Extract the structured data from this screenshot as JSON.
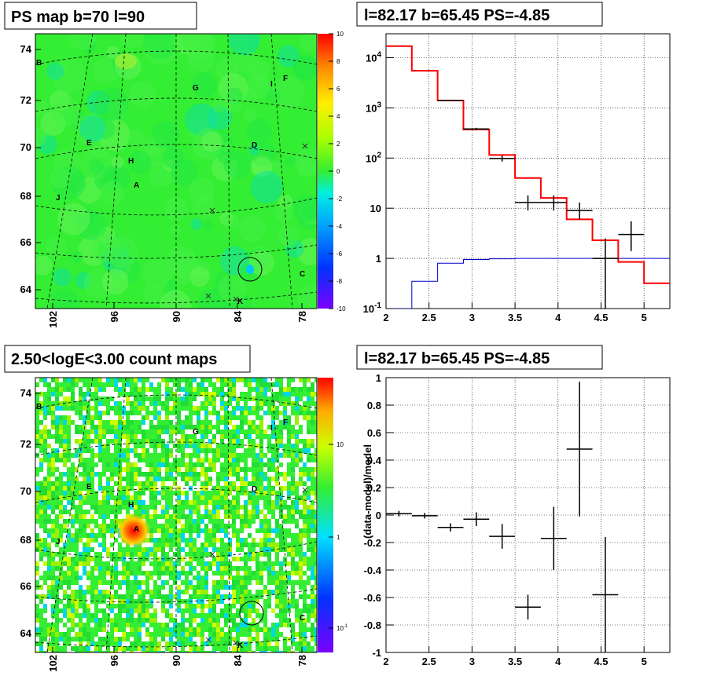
{
  "panels": {
    "ps_map": {
      "title": "PS map b=70 l=90"
    },
    "spectrum": {
      "title": "l=82.17 b=65.45 PS=-4.85"
    },
    "count_map": {
      "title": "2.50<logE<3.00 count maps"
    },
    "residual": {
      "title": "l=82.17 b=65.45 PS=-4.85",
      "ylabel": "(data-model)/model"
    }
  },
  "colors": {
    "model_red": "#ff0000",
    "background_blue": "#0000cc",
    "data_black": "#000000",
    "map_green": "#33ee33"
  },
  "chart_data": [
    {
      "type": "heatmap",
      "name": "ps_map",
      "title": "PS map b=70 l=90",
      "x_ticks": [
        "102",
        "96",
        "90",
        "84",
        "78"
      ],
      "y_ticks": [
        "74",
        "72",
        "70",
        "68",
        "66",
        "64"
      ],
      "colorbar_ticks": [
        "10",
        "8",
        "6",
        "4",
        "2",
        "0",
        "-2",
        "-4",
        "-6",
        "-8",
        "-10"
      ],
      "labels": [
        "B",
        "G",
        "I",
        "F",
        "E",
        "D",
        "H",
        "A",
        "J",
        "C",
        "K"
      ]
    },
    {
      "type": "line",
      "name": "spectrum",
      "title": "l=82.17 b=65.45 PS=-4.85",
      "log_y": true,
      "xlim": [
        2,
        5.3
      ],
      "ylim": [
        0.1,
        30000
      ],
      "x_ticks": [
        "2",
        "2.5",
        "3",
        "3.5",
        "4",
        "4.5",
        "5"
      ],
      "y_ticks": [
        "10^-1",
        "1",
        "10",
        "10^2",
        "10^3",
        "10^4"
      ],
      "model_step": {
        "edges": [
          2.0,
          2.3,
          2.6,
          2.9,
          3.2,
          3.5,
          3.8,
          4.1,
          4.4,
          4.7,
          5.0,
          5.3
        ],
        "values": [
          17000,
          5500,
          1400,
          370,
          115,
          40,
          16,
          6,
          2.3,
          0.85,
          0.32
        ]
      },
      "background_step": {
        "edges": [
          2.0,
          2.3,
          2.6,
          2.9,
          3.2,
          3.5,
          3.8,
          4.1,
          4.4,
          4.7,
          5.0,
          5.3
        ],
        "values": [
          0.1,
          0.35,
          0.8,
          0.95,
          0.98,
          1.0,
          1.0,
          1.0,
          1.0,
          1.0,
          1.0
        ]
      },
      "data_points": [
        {
          "x": 2.75,
          "y": 1400,
          "xerr": 0.15,
          "ylo": 1350,
          "yhi": 1450
        },
        {
          "x": 3.05,
          "y": 380,
          "xerr": 0.15,
          "ylo": 360,
          "yhi": 400
        },
        {
          "x": 3.35,
          "y": 98,
          "xerr": 0.15,
          "ylo": 85,
          "yhi": 112
        },
        {
          "x": 3.65,
          "y": 13,
          "xerr": 0.15,
          "ylo": 9,
          "yhi": 18
        },
        {
          "x": 3.95,
          "y": 13,
          "xerr": 0.15,
          "ylo": 9,
          "yhi": 18
        },
        {
          "x": 4.25,
          "y": 9,
          "xerr": 0.15,
          "ylo": 6,
          "yhi": 13
        },
        {
          "x": 4.55,
          "y": 1.0,
          "xerr": 0.15,
          "ylo": 0.1,
          "yhi": 2.5
        },
        {
          "x": 4.85,
          "y": 3.0,
          "xerr": 0.15,
          "ylo": 1.4,
          "yhi": 5.5
        }
      ]
    },
    {
      "type": "heatmap",
      "name": "count_map",
      "title": "2.50<logE<3.00 count maps",
      "x_ticks": [
        "102",
        "96",
        "90",
        "84",
        "78"
      ],
      "y_ticks": [
        "74",
        "72",
        "70",
        "68",
        "66",
        "64"
      ],
      "colorbar_ticks": [
        "10",
        "1",
        "10^-1"
      ],
      "labels": [
        "B",
        "G",
        "I",
        "F",
        "E",
        "D",
        "H",
        "A",
        "J",
        "C",
        "K"
      ]
    },
    {
      "type": "scatter",
      "name": "residual",
      "title": "l=82.17 b=65.45 PS=-4.85",
      "ylabel": "(data-model)/model",
      "xlim": [
        2,
        5.3
      ],
      "ylim": [
        -1,
        1
      ],
      "x_ticks": [
        "2",
        "2.5",
        "3",
        "3.5",
        "4",
        "4.5",
        "5"
      ],
      "y_ticks": [
        "1",
        "0.8",
        "0.6",
        "0.4",
        "0.2",
        "0",
        "-0.2",
        "-0.4",
        "-0.6",
        "-0.8",
        "-1"
      ],
      "points": [
        {
          "x": 2.15,
          "y": 0.01,
          "xerr": 0.15,
          "yerr": 0.02
        },
        {
          "x": 2.45,
          "y": -0.005,
          "xerr": 0.15,
          "yerr": 0.02
        },
        {
          "x": 2.75,
          "y": -0.09,
          "xerr": 0.15,
          "yerr": 0.03
        },
        {
          "x": 3.05,
          "y": -0.03,
          "xerr": 0.15,
          "yerr": 0.05
        },
        {
          "x": 3.35,
          "y": -0.155,
          "xerr": 0.15,
          "yerr": 0.09
        },
        {
          "x": 3.65,
          "y": -0.67,
          "xerr": 0.15,
          "yerr": 0.09
        },
        {
          "x": 3.95,
          "y": -0.17,
          "xerr": 0.15,
          "yerr": 0.23
        },
        {
          "x": 4.25,
          "y": 0.48,
          "xerr": 0.15,
          "yerr": 0.49
        },
        {
          "x": 4.55,
          "y": -0.58,
          "xerr": 0.15,
          "yerr": 0.42
        }
      ]
    }
  ]
}
